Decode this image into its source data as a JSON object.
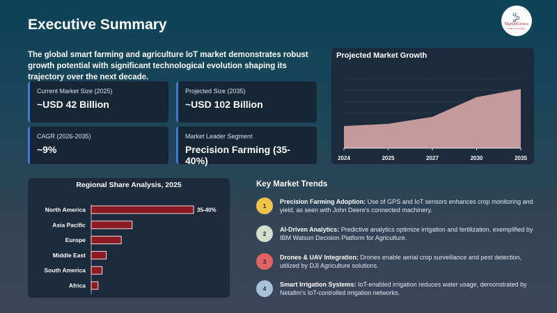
{
  "header": {
    "title": "Executive Summary",
    "logo_text": "MarketGenics",
    "logo_sub": "Ideas to Innovation"
  },
  "intro": "The global smart farming and agriculture IoT market demonstrates robust growth potential with significant technological evolution shaping its trajectory over the next decade.",
  "cards": [
    {
      "label": "Current Market Size (2025)",
      "value": "~USD 42 Billion"
    },
    {
      "label": "Projected Size (2035)",
      "value": "~USD 102 Billion"
    },
    {
      "label": "CAGR (2026-2035)",
      "value": "~9%"
    },
    {
      "label": "Market Leader Segment",
      "value": "Precision Farming (35-40%)"
    }
  ],
  "colors": {
    "accent": "#3f7ad6",
    "area": "#c49a9c",
    "bar": "#8b1a22"
  },
  "chart_data": [
    {
      "type": "area",
      "title": "Projected Market Growth",
      "categories": [
        "2024",
        "2025",
        "2027",
        "2030",
        "2035"
      ],
      "values": [
        38,
        42,
        54,
        88,
        102
      ],
      "ylim": [
        0,
        120
      ],
      "grid": true,
      "gridlines": [
        40,
        60,
        80,
        100,
        120
      ]
    },
    {
      "type": "bar",
      "orientation": "horizontal",
      "title": "Regional Share Analysis, 2025",
      "categories": [
        "North America",
        "Asia Pacific",
        "Europe",
        "Middle East",
        "South America",
        "Africa"
      ],
      "values": [
        37.5,
        15,
        11,
        5.5,
        4,
        2.5
      ],
      "data_labels": [
        "35-40%",
        "",
        "",
        "",
        "",
        ""
      ]
    }
  ],
  "trends": {
    "title": "Key Market Trends",
    "items": [
      {
        "num": "1",
        "color": "#f0c24a",
        "head": "Precision Farming Adoption:",
        "text": " Use of GPS and IoT sensors enhances crop monitoring and yield, as seen with John Deere's connected machinery."
      },
      {
        "num": "2",
        "color": "#d3dccd",
        "head": "AI-Driven Analytics:",
        "text": " Predictive analytics optimize irrigation and fertilization, exemplified by IBM Watson Decision Platform for Agriculture."
      },
      {
        "num": "3",
        "color": "#e06464",
        "head": "Drones & UAV Integration:",
        "text": " Drones enable aerial crop surveillance and pest detection, utilized by DJI Agriculture solutions."
      },
      {
        "num": "4",
        "color": "#a6c3d8",
        "head": "Smart Irrigation Systems:",
        "text": " IoT-enabled irrigation reduces water usage, demonstrated by Netafim's IoT-controlled irrigation networks."
      }
    ]
  }
}
